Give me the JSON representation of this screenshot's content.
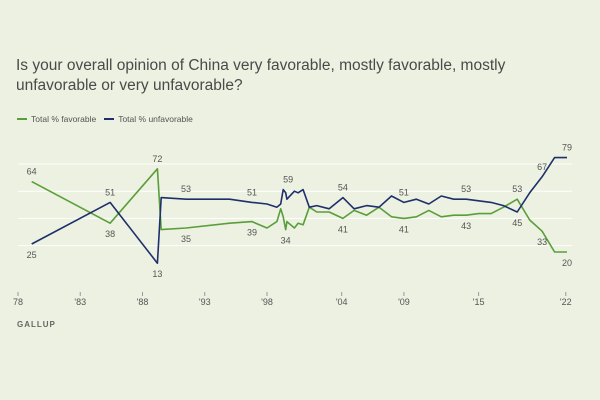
{
  "title": "Is your overall opinion of China very favorable, mostly favorable, mostly unfavorable or very unfavorable?",
  "source": "GALLUP",
  "colors": {
    "favorable": "#5a9e3a",
    "unfavorable": "#1f2f6b",
    "grid": "#ffffff",
    "label": "#555555"
  },
  "chart_data": {
    "type": "line",
    "title": "Is your overall opinion of China very favorable, mostly favorable, mostly unfavorable or very unfavorable?",
    "xlabel": "",
    "ylabel": "",
    "xlim": [
      1978,
      2022.5
    ],
    "ylim": [
      5,
      90
    ],
    "grid": "horizontal",
    "legend_position": "top-left",
    "x_ticks": [
      1978,
      1983,
      1988,
      1993,
      1998,
      2004,
      2009,
      2015,
      2022
    ],
    "x_tick_labels": [
      "78",
      "'83",
      "'88",
      "'93",
      "'98",
      "'04",
      "'09",
      "'15",
      "'22"
    ],
    "y_gridlines": [
      24,
      41,
      58,
      75
    ],
    "series": [
      {
        "name": "Total % favorable",
        "key": "favorable",
        "points": [
          [
            1979.1,
            64
          ],
          [
            1985.4,
            38
          ],
          [
            1989.2,
            72
          ],
          [
            1989.5,
            34
          ],
          [
            1991.5,
            35
          ],
          [
            1995,
            38
          ],
          [
            1996.8,
            39
          ],
          [
            1998,
            35
          ],
          [
            1998.8,
            39
          ],
          [
            1999.1,
            47
          ],
          [
            1999.3,
            42
          ],
          [
            1999.5,
            34
          ],
          [
            1999.6,
            39
          ],
          [
            2000.2,
            35
          ],
          [
            2000.5,
            38
          ],
          [
            2000.9,
            37
          ],
          [
            2001.4,
            48
          ],
          [
            2002,
            45
          ],
          [
            2003,
            45
          ],
          [
            2004.1,
            41
          ],
          [
            2005,
            46
          ],
          [
            2006,
            43
          ],
          [
            2007,
            48
          ],
          [
            2008,
            42
          ],
          [
            2009,
            41
          ],
          [
            2010,
            42
          ],
          [
            2011,
            46
          ],
          [
            2012,
            42
          ],
          [
            2013,
            43
          ],
          [
            2014,
            43
          ],
          [
            2015,
            44
          ],
          [
            2016,
            44
          ],
          [
            2017,
            48
          ],
          [
            2018.1,
            53
          ],
          [
            2019.1,
            40
          ],
          [
            2020.1,
            33
          ],
          [
            2021.1,
            20
          ],
          [
            2022.1,
            20
          ]
        ]
      },
      {
        "name": "Total % unfavorable",
        "key": "unfavorable",
        "points": [
          [
            1979.1,
            25
          ],
          [
            1985.4,
            51
          ],
          [
            1989.2,
            13
          ],
          [
            1989.5,
            54
          ],
          [
            1991.5,
            53
          ],
          [
            1995,
            53
          ],
          [
            1996.8,
            51
          ],
          [
            1998,
            50
          ],
          [
            1998.8,
            48
          ],
          [
            1999.1,
            50
          ],
          [
            1999.3,
            59
          ],
          [
            1999.5,
            57
          ],
          [
            1999.6,
            53
          ],
          [
            2000.2,
            58
          ],
          [
            2000.5,
            57
          ],
          [
            2000.9,
            59
          ],
          [
            2001.4,
            48
          ],
          [
            2002,
            49
          ],
          [
            2003,
            47
          ],
          [
            2004.1,
            54
          ],
          [
            2005,
            47
          ],
          [
            2006,
            49
          ],
          [
            2007,
            48
          ],
          [
            2008,
            55
          ],
          [
            2009,
            51
          ],
          [
            2010,
            53
          ],
          [
            2011,
            50
          ],
          [
            2012,
            55
          ],
          [
            2013,
            53
          ],
          [
            2014,
            53
          ],
          [
            2015,
            52
          ],
          [
            2016,
            51
          ],
          [
            2017,
            49
          ],
          [
            2018.1,
            45
          ],
          [
            2019.1,
            57
          ],
          [
            2020.1,
            67
          ],
          [
            2021.1,
            79
          ],
          [
            2022.1,
            79
          ]
        ]
      }
    ],
    "data_labels": [
      {
        "series": "favorable",
        "x": 1979.1,
        "y": 64,
        "text": "64",
        "pos": "above"
      },
      {
        "series": "unfavorable",
        "x": 1979.1,
        "y": 25,
        "text": "25",
        "pos": "below"
      },
      {
        "series": "unfavorable",
        "x": 1985.4,
        "y": 51,
        "text": "51",
        "pos": "above"
      },
      {
        "series": "favorable",
        "x": 1985.4,
        "y": 38,
        "text": "38",
        "pos": "below"
      },
      {
        "series": "favorable",
        "x": 1989.2,
        "y": 72,
        "text": "72",
        "pos": "above"
      },
      {
        "series": "unfavorable",
        "x": 1989.2,
        "y": 13,
        "text": "13",
        "pos": "below"
      },
      {
        "series": "unfavorable",
        "x": 1991.5,
        "y": 53,
        "text": "53",
        "pos": "above"
      },
      {
        "series": "favorable",
        "x": 1991.5,
        "y": 35,
        "text": "35",
        "pos": "below"
      },
      {
        "series": "unfavorable",
        "x": 1996.8,
        "y": 51,
        "text": "51",
        "pos": "above"
      },
      {
        "series": "favorable",
        "x": 1996.8,
        "y": 39,
        "text": "39",
        "pos": "below"
      },
      {
        "series": "unfavorable",
        "x": 2000.9,
        "y": 59,
        "text": "59",
        "pos": "above",
        "dx": -15
      },
      {
        "series": "favorable",
        "x": 1999.5,
        "y": 34,
        "text": "34",
        "pos": "below"
      },
      {
        "series": "unfavorable",
        "x": 2004.1,
        "y": 54,
        "text": "54",
        "pos": "above"
      },
      {
        "series": "favorable",
        "x": 2004.1,
        "y": 41,
        "text": "41",
        "pos": "below"
      },
      {
        "series": "unfavorable",
        "x": 2009,
        "y": 51,
        "text": "51",
        "pos": "above"
      },
      {
        "series": "favorable",
        "x": 2009,
        "y": 41,
        "text": "41",
        "pos": "below"
      },
      {
        "series": "unfavorable",
        "x": 2014,
        "y": 53,
        "text": "53",
        "pos": "above"
      },
      {
        "series": "favorable",
        "x": 2014,
        "y": 43,
        "text": "43",
        "pos": "below"
      },
      {
        "series": "favorable",
        "x": 2018.1,
        "y": 53,
        "text": "53",
        "pos": "above"
      },
      {
        "series": "unfavorable",
        "x": 2018.1,
        "y": 45,
        "text": "45",
        "pos": "below"
      },
      {
        "series": "unfavorable",
        "x": 2020.1,
        "y": 67,
        "text": "67",
        "pos": "above"
      },
      {
        "series": "favorable",
        "x": 2020.1,
        "y": 33,
        "text": "33",
        "pos": "below"
      },
      {
        "series": "unfavorable",
        "x": 2022.1,
        "y": 79,
        "text": "79",
        "pos": "above"
      },
      {
        "series": "favorable",
        "x": 2022.1,
        "y": 20,
        "text": "20",
        "pos": "below"
      }
    ]
  }
}
